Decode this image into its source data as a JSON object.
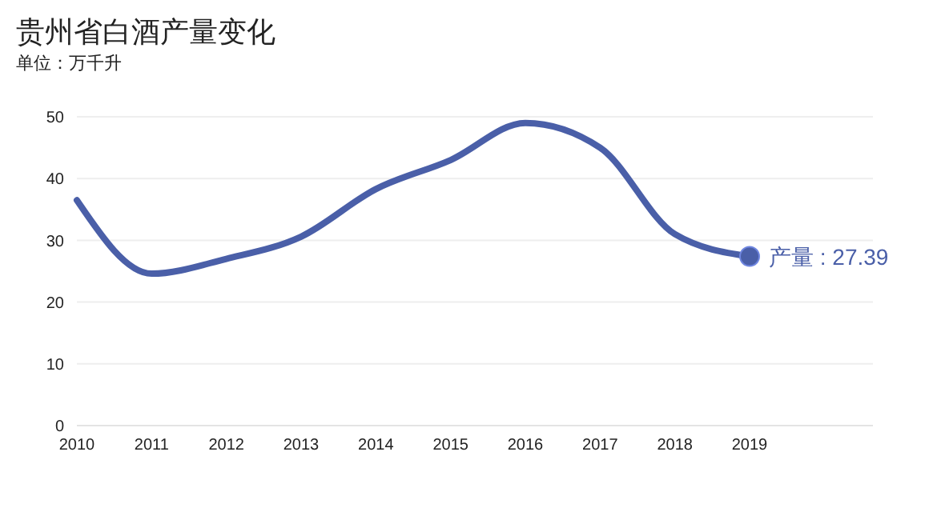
{
  "chart_data": {
    "type": "line",
    "title": "贵州省白酒产量变化",
    "subtitle": "单位：万千升",
    "categories": [
      "2010",
      "2011",
      "2012",
      "2013",
      "2014",
      "2015",
      "2016",
      "2017",
      "2018",
      "2019"
    ],
    "series": [
      {
        "color": "#4a5fa8",
        "values": [
          36.5,
          24.6,
          27,
          30.6,
          38.3,
          43,
          49,
          45,
          31,
          27.39
        ],
        "value_labels": [
          null,
          null,
          null,
          null,
          null,
          null,
          null,
          null,
          null,
          "产量 : 27.39"
        ]
      }
    ],
    "ylim": [
      0,
      50
    ],
    "yticks": [
      0,
      10,
      20,
      30,
      40,
      50
    ],
    "grid": "y",
    "legend": false
  }
}
